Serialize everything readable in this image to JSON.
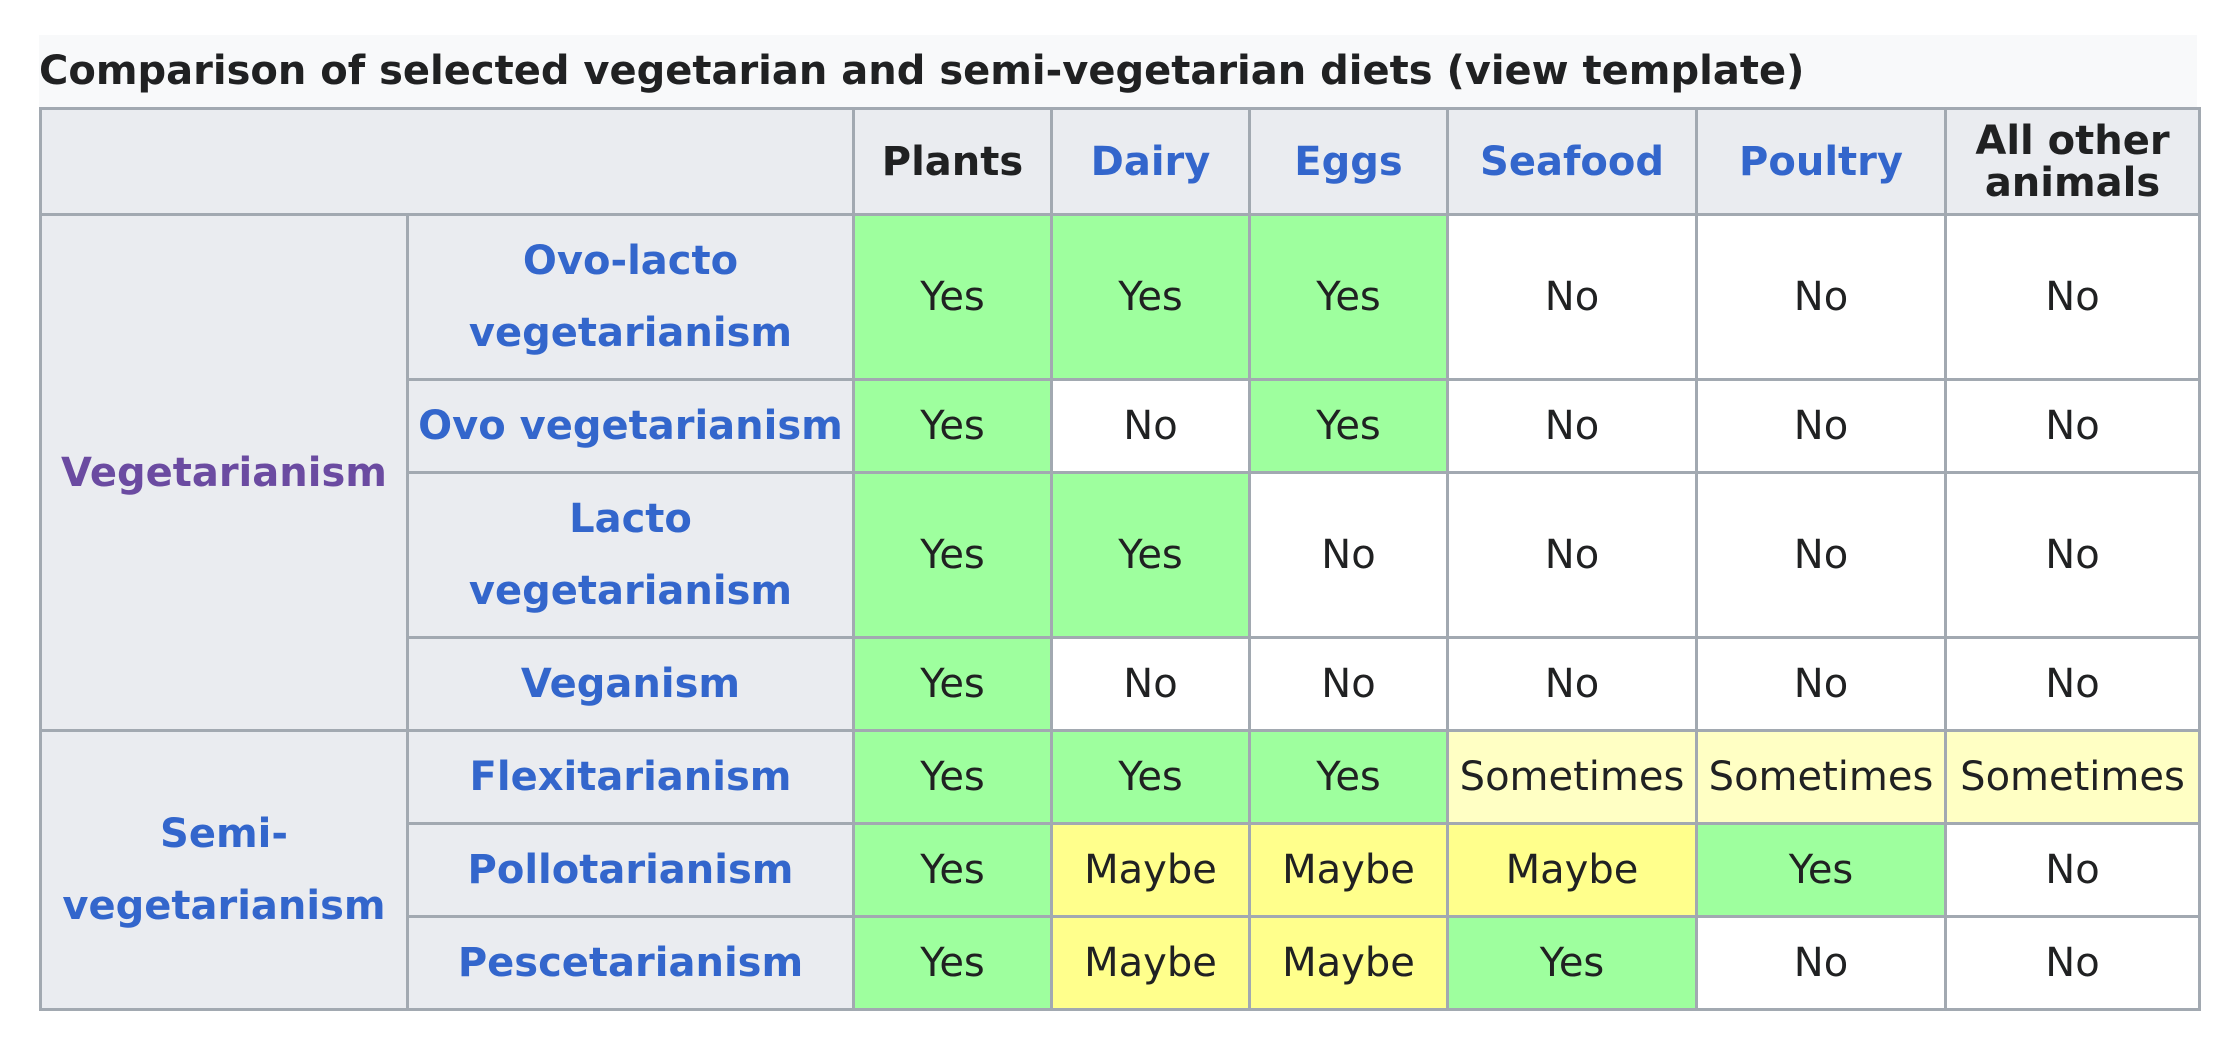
{
  "caption": "Comparison of selected vegetarian and semi-vegetarian diets (view template)",
  "columns": [
    "Plants",
    "Dairy",
    "Eggs",
    "Seafood",
    "Poultry",
    "All other animals"
  ],
  "groups": [
    {
      "label": "Vegetarianism"
    },
    {
      "label": "Semi-vegetarianism"
    }
  ],
  "rows": [
    {
      "diet": "Ovo-lacto vegetarianism",
      "cells": [
        "Yes",
        "Yes",
        "Yes",
        "No",
        "No",
        "No"
      ]
    },
    {
      "diet": "Ovo vegetarianism",
      "cells": [
        "Yes",
        "No",
        "Yes",
        "No",
        "No",
        "No"
      ]
    },
    {
      "diet": "Lacto vegetarianism",
      "cells": [
        "Yes",
        "Yes",
        "No",
        "No",
        "No",
        "No"
      ]
    },
    {
      "diet": "Veganism",
      "cells": [
        "Yes",
        "No",
        "No",
        "No",
        "No",
        "No"
      ]
    },
    {
      "diet": "Flexitarianism",
      "cells": [
        "Yes",
        "Yes",
        "Yes",
        "Sometimes",
        "Sometimes",
        "Sometimes"
      ]
    },
    {
      "diet": "Pollotarianism",
      "cells": [
        "Yes",
        "Maybe",
        "Maybe",
        "Maybe",
        "Yes",
        "No"
      ]
    },
    {
      "diet": "Pescetarianism",
      "cells": [
        "Yes",
        "Maybe",
        "Maybe",
        "Yes",
        "No",
        "No"
      ]
    }
  ],
  "colors": {
    "yes": "#9eff9e",
    "maybe": "#ffff8c",
    "sometimes": "#ffffc4",
    "header": "#eaecf0",
    "link": "#3366cc",
    "visited_link": "#6b4ba1"
  }
}
